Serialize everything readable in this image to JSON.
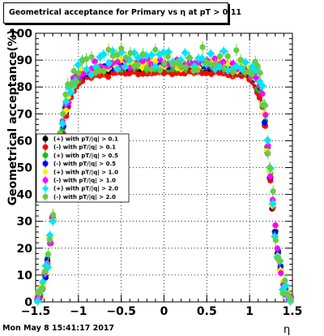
{
  "title": "Geometrical acceptance for Primary vs   η at pT > 0.11",
  "footer": "Mon May  8 15:41:17 2017",
  "chart_data": {
    "type": "scatter",
    "title": "Geometrical acceptance for Primary vs   η at pT > 0.11",
    "xlabel": "η",
    "ylabel": "Geometrical acceptance(%)",
    "xlim": [
      -1.5,
      1.5
    ],
    "ylim": [
      0,
      100
    ],
    "x_ticks": [
      "−1.5",
      "−1",
      "−0.5",
      "0",
      "0.5",
      "1",
      "1.5"
    ],
    "y_ticks": [
      "0",
      "10",
      "20",
      "30",
      "40",
      "50",
      "60",
      "70",
      "80",
      "90",
      "100"
    ],
    "grid": true,
    "legend_position": "middle-left",
    "series": [
      {
        "name": "(+) with pT/|q| > 0.1",
        "color": "#000000",
        "marker": "circle",
        "offset": 0.0,
        "noise": 0.4
      },
      {
        "name": "(-) with pT/|q| > 0.1",
        "color": "#ff0000",
        "marker": "circle",
        "offset": -0.8,
        "noise": 0.5
      },
      {
        "name": "(+) with pT/|q| > 0.5",
        "color": "#00cc00",
        "marker": "circle",
        "offset": 1.5,
        "noise": 1.2
      },
      {
        "name": "(-) with pT/|q| > 0.5",
        "color": "#0000ff",
        "marker": "circle",
        "offset": 1.8,
        "noise": 1.2
      },
      {
        "name": "(+) with pT/|q| > 1.0",
        "color": "#ffee00",
        "marker": "diamond",
        "offset": 2.5,
        "noise": 1.8
      },
      {
        "name": "(-) with pT/|q| > 1.0",
        "color": "#ff00ff",
        "marker": "circle",
        "offset": 2.8,
        "noise": 1.8
      },
      {
        "name": "(+) with pT/|q| > 2.0",
        "color": "#00e5ff",
        "marker": "diamond",
        "offset": 4.0,
        "noise": 3.5
      },
      {
        "name": "(-) with pT/|q| > 2.0",
        "color": "#66cc44",
        "marker": "circle",
        "offset": 4.5,
        "noise": 4.5
      }
    ],
    "baseline_x": [
      -1.48,
      -1.45,
      -1.42,
      -1.39,
      -1.36,
      -1.33,
      -1.3,
      -1.27,
      -1.24,
      -1.21,
      -1.18,
      -1.15,
      -1.12,
      -1.09,
      -1.06,
      -1.03,
      -1.0,
      -0.95,
      -0.9,
      -0.85,
      -0.8,
      -0.75,
      -0.7,
      -0.65,
      -0.6,
      -0.55,
      -0.5,
      -0.45,
      -0.4,
      -0.35,
      -0.3,
      -0.25,
      -0.2,
      -0.15,
      -0.1,
      -0.05,
      0.0,
      0.05,
      0.1,
      0.15,
      0.2,
      0.25,
      0.3,
      0.35,
      0.4,
      0.45,
      0.5,
      0.55,
      0.6,
      0.65,
      0.7,
      0.75,
      0.8,
      0.85,
      0.9,
      0.95,
      1.0,
      1.03,
      1.06,
      1.09,
      1.12,
      1.15,
      1.18,
      1.21,
      1.24,
      1.27,
      1.3,
      1.33,
      1.36,
      1.39,
      1.42,
      1.45,
      1.48
    ],
    "baseline_y": [
      1,
      2,
      5,
      10,
      15,
      22,
      31,
      40,
      49,
      57,
      63,
      70,
      73,
      77,
      79,
      81,
      82,
      83,
      84,
      84,
      85,
      85,
      85,
      85,
      86,
      86,
      86,
      86,
      86,
      86,
      86,
      86,
      86,
      86,
      86,
      86,
      86,
      86,
      86,
      86,
      86,
      86,
      87,
      86,
      86,
      86,
      86,
      86,
      86,
      86,
      86,
      85,
      85,
      85,
      85,
      85,
      84,
      83,
      81,
      79,
      77,
      73,
      66,
      56,
      46,
      35,
      26,
      18,
      12,
      7,
      4,
      2,
      1
    ]
  }
}
